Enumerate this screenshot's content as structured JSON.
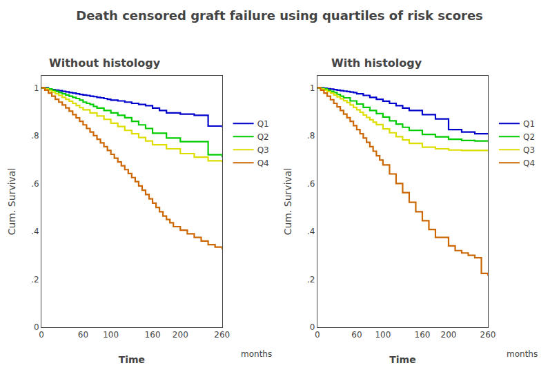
{
  "title": "Death censored graft failure using quartiles of risk scores",
  "chart_data": [
    {
      "type": "line",
      "subtitle": "Without histology",
      "xlabel": "Time",
      "ylabel": "Cum. Survival",
      "annotation": "months",
      "line_style": "step",
      "grid": false,
      "legend": "right",
      "xlim": [
        0,
        260
      ],
      "ylim": [
        0,
        1.05
      ],
      "xticks": [
        0,
        60,
        100,
        160,
        200,
        260
      ],
      "yticks": [
        0,
        {
          "value": 0.2,
          "label": ".2"
        },
        {
          "value": 0.4,
          "label": ".4"
        },
        {
          "value": 0.6,
          "label": ".6"
        },
        {
          "value": 0.8,
          "label": ".8"
        },
        1
      ],
      "series": [
        {
          "name": "Q1",
          "color": "#0000CC",
          "x": [
            0,
            5,
            10,
            15,
            20,
            25,
            30,
            35,
            40,
            45,
            50,
            55,
            60,
            65,
            70,
            75,
            80,
            85,
            90,
            95,
            100,
            110,
            120,
            130,
            140,
            150,
            160,
            170,
            180,
            200,
            220,
            240,
            260
          ],
          "values": [
            1.0,
            1.0,
            0.995,
            0.992,
            0.99,
            0.988,
            0.985,
            0.983,
            0.98,
            0.978,
            0.975,
            0.972,
            0.97,
            0.968,
            0.965,
            0.963,
            0.96,
            0.958,
            0.955,
            0.952,
            0.948,
            0.945,
            0.94,
            0.935,
            0.93,
            0.925,
            0.915,
            0.905,
            0.895,
            0.89,
            0.885,
            0.84,
            0.835
          ]
        },
        {
          "name": "Q2",
          "color": "#00CC00",
          "x": [
            0,
            5,
            10,
            15,
            20,
            25,
            30,
            35,
            40,
            45,
            50,
            55,
            60,
            65,
            70,
            75,
            80,
            90,
            100,
            110,
            120,
            130,
            140,
            150,
            160,
            180,
            200,
            240,
            260
          ],
          "values": [
            1.0,
            0.998,
            0.995,
            0.99,
            0.985,
            0.98,
            0.975,
            0.97,
            0.965,
            0.96,
            0.955,
            0.948,
            0.94,
            0.935,
            0.93,
            0.922,
            0.915,
            0.905,
            0.895,
            0.885,
            0.875,
            0.86,
            0.845,
            0.83,
            0.81,
            0.79,
            0.775,
            0.72,
            0.71
          ]
        },
        {
          "name": "Q3",
          "color": "#DDDD00",
          "x": [
            0,
            5,
            10,
            15,
            20,
            25,
            30,
            35,
            40,
            45,
            50,
            55,
            60,
            70,
            80,
            90,
            100,
            110,
            120,
            130,
            140,
            150,
            160,
            180,
            200,
            220,
            240,
            260
          ],
          "values": [
            1.0,
            0.995,
            0.988,
            0.982,
            0.975,
            0.968,
            0.96,
            0.952,
            0.944,
            0.935,
            0.926,
            0.917,
            0.908,
            0.895,
            0.882,
            0.868,
            0.852,
            0.838,
            0.822,
            0.808,
            0.792,
            0.778,
            0.762,
            0.745,
            0.725,
            0.71,
            0.695,
            0.69
          ]
        },
        {
          "name": "Q4",
          "color": "#CC6600",
          "x": [
            0,
            5,
            10,
            15,
            20,
            25,
            30,
            35,
            40,
            45,
            50,
            55,
            60,
            65,
            70,
            75,
            80,
            85,
            90,
            95,
            100,
            105,
            110,
            115,
            120,
            125,
            130,
            135,
            140,
            145,
            150,
            155,
            160,
            165,
            170,
            175,
            180,
            185,
            190,
            200,
            210,
            220,
            230,
            240,
            250,
            260
          ],
          "values": [
            1.0,
            0.99,
            0.978,
            0.965,
            0.952,
            0.94,
            0.928,
            0.916,
            0.902,
            0.888,
            0.874,
            0.86,
            0.845,
            0.83,
            0.815,
            0.8,
            0.785,
            0.77,
            0.754,
            0.738,
            0.722,
            0.706,
            0.69,
            0.674,
            0.658,
            0.642,
            0.625,
            0.608,
            0.59,
            0.572,
            0.554,
            0.536,
            0.518,
            0.5,
            0.482,
            0.464,
            0.45,
            0.436,
            0.42,
            0.405,
            0.39,
            0.375,
            0.36,
            0.345,
            0.335,
            0.325
          ]
        }
      ]
    },
    {
      "type": "line",
      "subtitle": "With histology",
      "xlabel": "Time",
      "ylabel": "Cum. Survival",
      "annotation": "months",
      "line_style": "step",
      "grid": false,
      "legend": "right",
      "xlim": [
        0,
        260
      ],
      "ylim": [
        0,
        1.05
      ],
      "xticks": [
        0,
        60,
        100,
        160,
        200,
        260
      ],
      "yticks": [
        0,
        {
          "value": 0.2,
          "label": ".2"
        },
        {
          "value": 0.4,
          "label": ".4"
        },
        {
          "value": 0.6,
          "label": ".6"
        },
        {
          "value": 0.8,
          "label": ".8"
        },
        1
      ],
      "series": [
        {
          "name": "Q1",
          "color": "#0000CC",
          "x": [
            0,
            5,
            10,
            15,
            20,
            25,
            30,
            35,
            40,
            45,
            50,
            55,
            60,
            70,
            80,
            90,
            100,
            110,
            120,
            130,
            140,
            160,
            180,
            200,
            220,
            240,
            260
          ],
          "values": [
            1.0,
            1.0,
            0.998,
            0.996,
            0.994,
            0.992,
            0.99,
            0.988,
            0.986,
            0.984,
            0.982,
            0.98,
            0.975,
            0.968,
            0.96,
            0.952,
            0.944,
            0.935,
            0.925,
            0.915,
            0.905,
            0.888,
            0.87,
            0.825,
            0.815,
            0.808,
            0.805
          ]
        },
        {
          "name": "Q2",
          "color": "#00CC00",
          "x": [
            0,
            5,
            10,
            15,
            20,
            25,
            30,
            35,
            40,
            50,
            60,
            70,
            80,
            90,
            100,
            110,
            120,
            130,
            140,
            160,
            180,
            200,
            220,
            240,
            260
          ],
          "values": [
            1.0,
            0.998,
            0.995,
            0.99,
            0.985,
            0.98,
            0.972,
            0.965,
            0.958,
            0.945,
            0.932,
            0.918,
            0.905,
            0.892,
            0.878,
            0.862,
            0.848,
            0.835,
            0.822,
            0.805,
            0.795,
            0.785,
            0.78,
            0.778,
            0.775
          ]
        },
        {
          "name": "Q3",
          "color": "#DDDD00",
          "x": [
            0,
            5,
            10,
            15,
            20,
            25,
            30,
            35,
            40,
            45,
            50,
            55,
            60,
            65,
            70,
            75,
            80,
            85,
            90,
            100,
            110,
            120,
            130,
            140,
            160,
            180,
            200,
            220,
            240,
            260
          ],
          "values": [
            1.0,
            0.996,
            0.99,
            0.984,
            0.978,
            0.97,
            0.962,
            0.954,
            0.946,
            0.938,
            0.928,
            0.918,
            0.908,
            0.898,
            0.886,
            0.876,
            0.866,
            0.856,
            0.846,
            0.828,
            0.812,
            0.796,
            0.782,
            0.768,
            0.752,
            0.745,
            0.74,
            0.738,
            0.738,
            0.735
          ]
        },
        {
          "name": "Q4",
          "color": "#CC6600",
          "x": [
            0,
            5,
            10,
            15,
            20,
            25,
            30,
            35,
            40,
            45,
            50,
            55,
            60,
            65,
            70,
            75,
            80,
            85,
            90,
            95,
            100,
            110,
            120,
            130,
            140,
            150,
            160,
            170,
            180,
            200,
            210,
            220,
            230,
            240,
            250,
            260
          ],
          "values": [
            1.0,
            0.99,
            0.978,
            0.965,
            0.95,
            0.935,
            0.92,
            0.905,
            0.89,
            0.875,
            0.86,
            0.842,
            0.825,
            0.808,
            0.79,
            0.772,
            0.754,
            0.735,
            0.716,
            0.698,
            0.678,
            0.64,
            0.6,
            0.562,
            0.522,
            0.482,
            0.445,
            0.408,
            0.375,
            0.34,
            0.32,
            0.31,
            0.3,
            0.29,
            0.225,
            0.215
          ]
        }
      ]
    }
  ]
}
